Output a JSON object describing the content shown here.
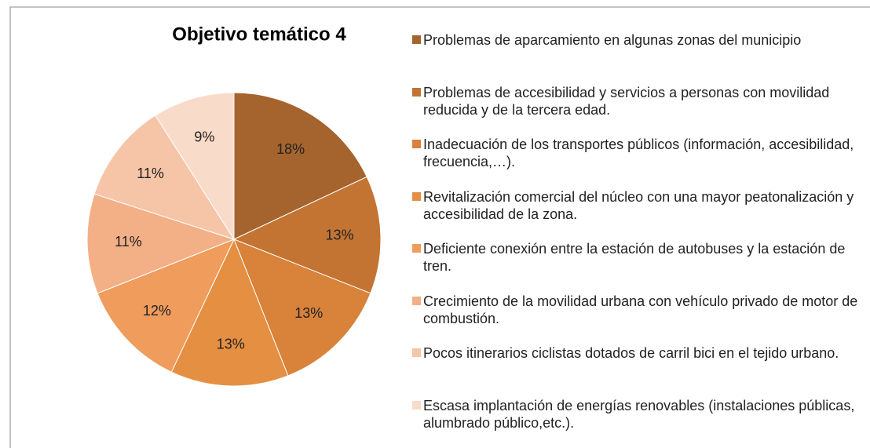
{
  "chart_data": {
    "type": "pie",
    "title": "Objetivo temático 4",
    "categories": [
      "Problemas de aparcamiento en algunas zonas del municipio",
      "Problemas de accesibilidad y servicios a personas con movilidad reducida y de la tercera edad.",
      "Inadecuación de los transportes públicos (información, accesibilidad, frecuencia,…).",
      "Revitalización comercial del núcleo con una mayor peatonalización y accesibilidad de la zona.",
      "Deficiente conexión entre la estación de autobuses y la estación de tren.",
      "Crecimiento de la movilidad urbana con vehículo privado de motor de combustión.",
      "Pocos itinerarios ciclistas dotados de carril bici en el tejido urbano.",
      "Escasa implantación de energías renovables (instalaciones públicas, alumbrado público,etc.)."
    ],
    "values": [
      18,
      13,
      13,
      13,
      12,
      11,
      11,
      9
    ],
    "value_labels": [
      "18%",
      "13%",
      "13%",
      "13%",
      "12%",
      "11%",
      "11%",
      "9%"
    ],
    "colors": [
      "#a5632e",
      "#c37433",
      "#d8823a",
      "#e58f42",
      "#ef9c5c",
      "#f3b087",
      "#f6c5a7",
      "#f9dbc9"
    ],
    "legend": "right"
  }
}
